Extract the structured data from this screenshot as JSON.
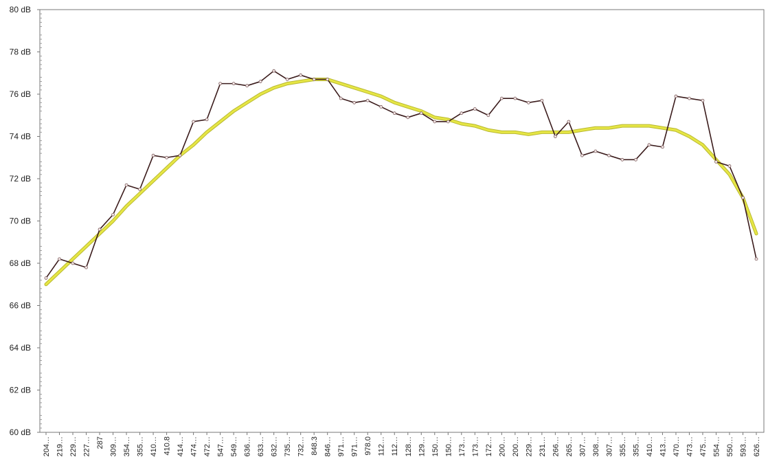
{
  "chart_data": {
    "type": "line",
    "categories": [
      "204…",
      "219…",
      "229…",
      "227…",
      "287",
      "309…",
      "354…",
      "355…",
      "410…",
      "410.8",
      "414…",
      "474…",
      "472…",
      "547…",
      "549…",
      "636…",
      "633…",
      "632…",
      "735…",
      "732…",
      "848.3",
      "846…",
      "971…",
      "971…",
      "978.0",
      "112…",
      "112…",
      "128…",
      "129…",
      "150…",
      "150…",
      "173…",
      "173…",
      "172…",
      "200…",
      "200…",
      "229…",
      "231…",
      "266…",
      "265…",
      "307…",
      "308…",
      "307…",
      "355…",
      "355…",
      "410…",
      "413…",
      "470…",
      "473…",
      "475…",
      "554…",
      "550…",
      "593…",
      "626…"
    ],
    "series": [
      {
        "color": "#3b1c1c",
        "values": [
          67.3,
          68.2,
          68.0,
          67.8,
          69.6,
          70.3,
          71.7,
          71.5,
          73.1,
          73.0,
          73.1,
          74.7,
          74.8,
          76.5,
          76.5,
          76.4,
          76.6,
          77.1,
          76.7,
          76.9,
          76.7,
          76.7,
          75.8,
          75.6,
          75.7,
          75.4,
          75.1,
          74.9,
          75.1,
          74.7,
          74.7,
          75.1,
          75.3,
          75.0,
          75.8,
          75.8,
          75.6,
          75.7,
          74.0,
          74.7,
          73.1,
          73.3,
          73.1,
          72.9,
          72.9,
          73.6,
          73.5,
          75.9,
          75.8,
          75.7,
          72.8,
          72.6,
          71.1,
          68.2
        ]
      },
      {
        "color": "#e6e645",
        "values": [
          67.0,
          67.6,
          68.2,
          68.8,
          69.4,
          70.0,
          70.7,
          71.3,
          71.9,
          72.5,
          73.1,
          73.6,
          74.2,
          74.7,
          75.2,
          75.6,
          76.0,
          76.3,
          76.5,
          76.6,
          76.7,
          76.7,
          76.5,
          76.3,
          76.1,
          75.9,
          75.6,
          75.4,
          75.2,
          74.9,
          74.8,
          74.6,
          74.5,
          74.3,
          74.2,
          74.2,
          74.1,
          74.2,
          74.2,
          74.2,
          74.3,
          74.4,
          74.4,
          74.5,
          74.5,
          74.5,
          74.4,
          74.3,
          74.0,
          73.6,
          72.9,
          72.2,
          71.1,
          69.4
        ]
      }
    ],
    "ylim": [
      60,
      80
    ],
    "yticks": [
      {
        "value": 60,
        "label": "60 dB"
      },
      {
        "value": 62,
        "label": "62 dB"
      },
      {
        "value": 64,
        "label": "64 dB"
      },
      {
        "value": 66,
        "label": "66 dB"
      },
      {
        "value": 68,
        "label": "68 dB"
      },
      {
        "value": 70,
        "label": "70 dB"
      },
      {
        "value": 72,
        "label": "72 dB"
      },
      {
        "value": 74,
        "label": "74 dB"
      },
      {
        "value": 76,
        "label": "76 dB"
      },
      {
        "value": 78,
        "label": "78 dB"
      },
      {
        "value": 80,
        "label": "80 dB"
      }
    ],
    "grid": false
  }
}
